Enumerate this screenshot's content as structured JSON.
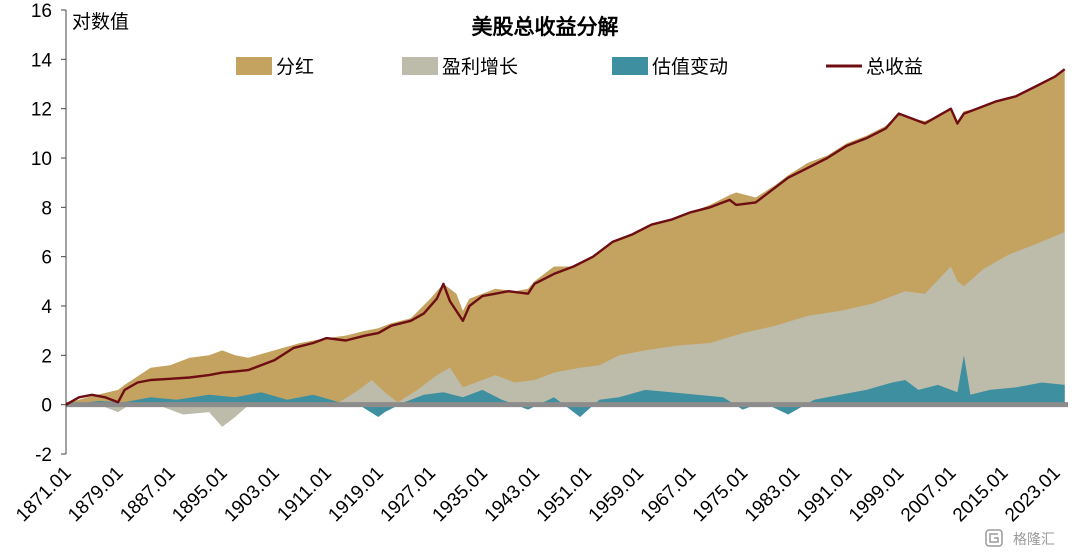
{
  "chart_data": {
    "type": "area",
    "title": "美股总收益分解",
    "ylabel": "对数值",
    "ylim": [
      -2,
      16
    ],
    "yticks": [
      -2,
      0,
      2,
      4,
      6,
      8,
      10,
      12,
      14,
      16
    ],
    "xlim": [
      1871.0,
      2025.0
    ],
    "x_tick_labels": [
      "1871.01",
      "1879.01",
      "1887.01",
      "1895.01",
      "1903.01",
      "1911.01",
      "1919.01",
      "1927.01",
      "1935.01",
      "1943.01",
      "1951.01",
      "1959.01",
      "1967.01",
      "1975.01",
      "1983.01",
      "1991.01",
      "1999.01",
      "2007.01",
      "2015.01",
      "2023.01"
    ],
    "legend_position": "top",
    "watermark": "格隆汇",
    "series": [
      {
        "name": "分红",
        "kind": "area",
        "color": "#C4A260",
        "x": [
          1871,
          1875,
          1879,
          1880,
          1884,
          1887,
          1890,
          1893,
          1895,
          1897,
          1899,
          1903,
          1907,
          1909,
          1911,
          1914,
          1917,
          1919,
          1921,
          1924,
          1927,
          1929,
          1931,
          1932,
          1933,
          1935,
          1937,
          1940,
          1942,
          1943,
          1946,
          1949,
          1952,
          1955,
          1958,
          1961,
          1964,
          1967,
          1970,
          1973,
          1974,
          1977,
          1980,
          1982,
          1985,
          1988,
          1991,
          1994,
          1997,
          1999,
          2001,
          2003,
          2005,
          2007,
          2008,
          2009,
          2011,
          2014,
          2017,
          2020,
          2023,
          2024.5
        ],
        "y": [
          0.05,
          0.35,
          0.6,
          0.8,
          1.5,
          1.6,
          1.9,
          2.0,
          2.2,
          2.0,
          1.9,
          2.2,
          2.5,
          2.6,
          2.7,
          2.8,
          3.0,
          3.1,
          3.3,
          3.5,
          4.3,
          4.9,
          4.5,
          3.8,
          4.3,
          4.5,
          4.7,
          4.6,
          4.7,
          5.0,
          5.6,
          5.6,
          6.0,
          6.6,
          6.9,
          7.3,
          7.5,
          7.8,
          8.1,
          8.5,
          8.6,
          8.4,
          8.9,
          9.3,
          9.8,
          10.1,
          10.6,
          10.9,
          11.3,
          11.8,
          11.6,
          11.5,
          11.7,
          12.0,
          11.5,
          11.9,
          12.0,
          12.3,
          12.5,
          12.9,
          13.3,
          13.6
        ]
      },
      {
        "name": "盈利增长",
        "kind": "area",
        "color": "#BDBCAA",
        "x": [
          1871,
          1874,
          1877,
          1879,
          1882,
          1885,
          1889,
          1893,
          1895,
          1897,
          1900,
          1903,
          1907,
          1910,
          1913,
          1916,
          1918,
          1920,
          1922,
          1925,
          1928,
          1930,
          1932,
          1934,
          1937,
          1940,
          1943,
          1946,
          1950,
          1953,
          1956,
          1960,
          1965,
          1970,
          1975,
          1980,
          1985,
          1990,
          1995,
          2000,
          2003,
          2007,
          2008,
          2009,
          2012,
          2016,
          2020,
          2024.5
        ],
        "y": [
          0.0,
          0.1,
          -0.1,
          -0.3,
          0.2,
          0.0,
          -0.4,
          -0.3,
          -0.9,
          -0.5,
          0.2,
          0.3,
          0.1,
          0.3,
          0.1,
          0.6,
          1.0,
          0.5,
          0.1,
          0.6,
          1.2,
          1.5,
          0.7,
          0.9,
          1.2,
          0.9,
          1.0,
          1.3,
          1.5,
          1.6,
          2.0,
          2.2,
          2.4,
          2.5,
          2.9,
          3.2,
          3.6,
          3.8,
          4.1,
          4.6,
          4.5,
          5.6,
          5.0,
          4.8,
          5.5,
          6.1,
          6.5,
          7.0
        ]
      },
      {
        "name": "估值变动",
        "kind": "area",
        "color": "#3E8FA0",
        "x": [
          1871,
          1876,
          1880,
          1884,
          1888,
          1893,
          1897,
          1901,
          1905,
          1909,
          1913,
          1916,
          1919,
          1920,
          1923,
          1926,
          1929,
          1932,
          1935,
          1938,
          1942,
          1946,
          1950,
          1953,
          1956,
          1960,
          1964,
          1968,
          1972,
          1975,
          1978,
          1982,
          1986,
          1990,
          1994,
          1998,
          2000,
          2002,
          2005,
          2008,
          2009,
          2010,
          2013,
          2017,
          2021,
          2024.5
        ],
        "y": [
          0.0,
          0.15,
          0.1,
          0.3,
          0.2,
          0.4,
          0.3,
          0.5,
          0.2,
          0.4,
          0.1,
          0.0,
          -0.5,
          -0.3,
          0.1,
          0.4,
          0.5,
          0.3,
          0.6,
          0.2,
          -0.2,
          0.3,
          -0.5,
          0.2,
          0.3,
          0.6,
          0.5,
          0.4,
          0.3,
          -0.2,
          0.1,
          -0.4,
          0.2,
          0.4,
          0.6,
          0.9,
          1.0,
          0.6,
          0.8,
          0.5,
          2.0,
          0.4,
          0.6,
          0.7,
          0.9,
          0.8
        ]
      },
      {
        "name": "总收益",
        "kind": "line",
        "color": "#6E0E12",
        "x": [
          1871,
          1873,
          1875,
          1877,
          1879,
          1880,
          1882,
          1884,
          1887,
          1890,
          1893,
          1895,
          1897,
          1899,
          1903,
          1906,
          1909,
          1911,
          1914,
          1917,
          1919,
          1921,
          1924,
          1926,
          1928,
          1929,
          1930,
          1932,
          1933,
          1935,
          1937,
          1939,
          1942,
          1943,
          1946,
          1949,
          1952,
          1955,
          1958,
          1961,
          1964,
          1967,
          1970,
          1973,
          1974,
          1977,
          1980,
          1982,
          1985,
          1988,
          1991,
          1994,
          1997,
          1999,
          2001,
          2003,
          2005,
          2007,
          2008,
          2009,
          2011,
          2014,
          2017,
          2020,
          2023,
          2024.5
        ],
        "y": [
          0.0,
          0.3,
          0.4,
          0.3,
          0.1,
          0.6,
          0.9,
          1.0,
          1.05,
          1.1,
          1.2,
          1.3,
          1.35,
          1.4,
          1.8,
          2.3,
          2.5,
          2.7,
          2.6,
          2.8,
          2.9,
          3.2,
          3.4,
          3.7,
          4.3,
          4.9,
          4.2,
          3.4,
          4.0,
          4.4,
          4.5,
          4.6,
          4.5,
          4.9,
          5.3,
          5.6,
          6.0,
          6.6,
          6.9,
          7.3,
          7.5,
          7.8,
          8.0,
          8.3,
          8.1,
          8.2,
          8.8,
          9.2,
          9.6,
          10.0,
          10.5,
          10.8,
          11.2,
          11.8,
          11.6,
          11.4,
          11.7,
          12.0,
          11.4,
          11.8,
          12.0,
          12.3,
          12.5,
          12.9,
          13.3,
          13.6
        ]
      }
    ]
  }
}
